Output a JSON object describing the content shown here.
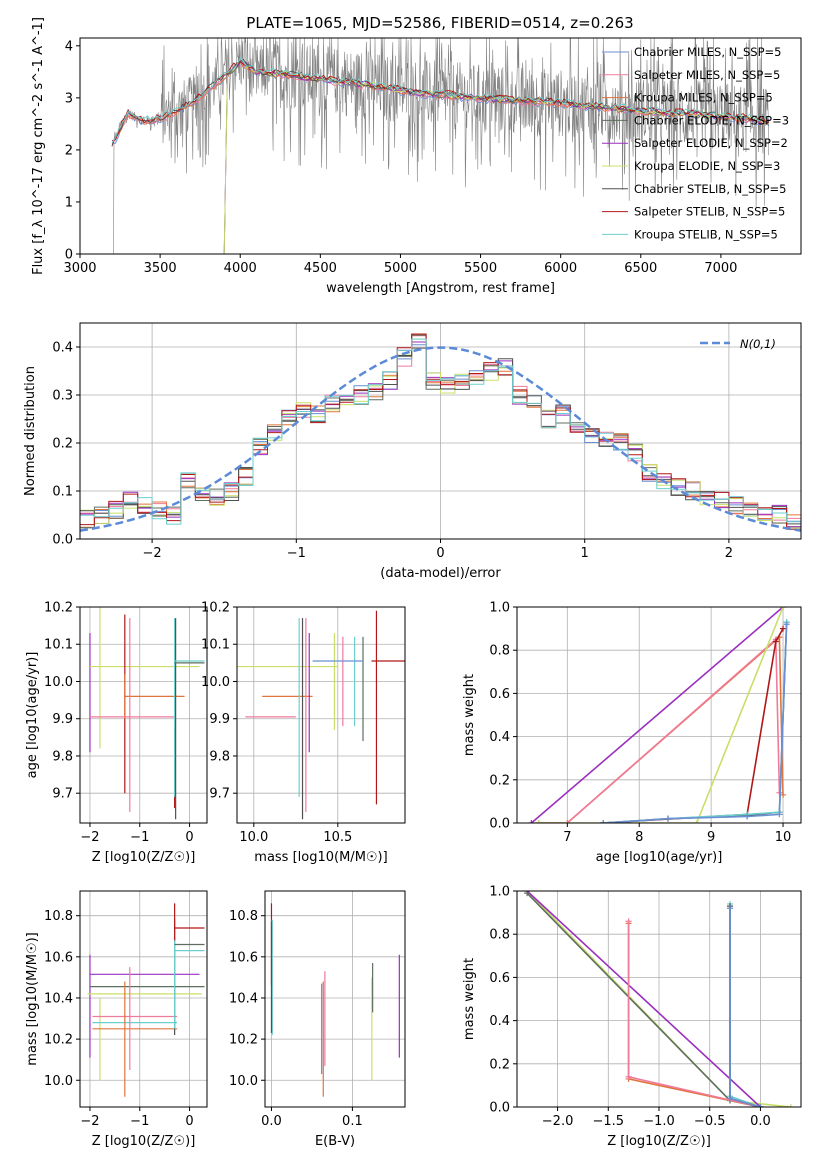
{
  "figure": {
    "title": "PLATE=1065, MJD=52586, FIBERID=0514, z=0.263"
  },
  "colors": {
    "chabrier_miles": "#6a8fd4",
    "salpeter_miles": "#f07a9a",
    "kroupa_miles": "#e0743c",
    "chabrier_elodie": "#5f6f5f",
    "salpeter_elodie": "#9b2fbf",
    "kroupa_elodie": "#c8e06a",
    "chabrier_stelib": "#505050",
    "salpeter_stelib": "#b01818",
    "kroupa_stelib": "#6ccfcf",
    "data_gray": "#808080",
    "normal_curve": "#5b8bd8"
  },
  "chart_data": [
    {
      "id": "spectrum",
      "type": "line",
      "xlabel": "wavelength [Angstrom, rest frame]",
      "ylabel": "Flux [f_λ 10^-17 erg cm^-2 s^-1 A^-1]",
      "xlim": [
        3000,
        7500
      ],
      "ylim": [
        0,
        4.15
      ],
      "xticks": [
        3000,
        3500,
        4000,
        4500,
        5000,
        5500,
        6000,
        6500,
        7000
      ],
      "yticks": [
        0,
        1,
        2,
        3,
        4
      ],
      "legend_position": "upper right",
      "data_range": [
        3200,
        7300
      ],
      "series": [
        {
          "name": "Chabrier MILES, N_SSP=5",
          "key": "chabrier_miles"
        },
        {
          "name": "Salpeter MILES, N_SSP=5",
          "key": "salpeter_miles"
        },
        {
          "name": "Kroupa MILES, N_SSP=5",
          "key": "kroupa_miles"
        },
        {
          "name": "Chabrier ELODIE, N_SSP=3",
          "key": "chabrier_elodie"
        },
        {
          "name": "Salpeter ELODIE, N_SSP=2",
          "key": "salpeter_elodie"
        },
        {
          "name": "Kroupa ELODIE, N_SSP=3",
          "key": "kroupa_elodie"
        },
        {
          "name": "Chabrier STELIB, N_SSP=5",
          "key": "chabrier_stelib"
        },
        {
          "name": "Salpeter STELIB, N_SSP=5",
          "key": "salpeter_stelib"
        },
        {
          "name": "Kroupa STELIB, N_SSP=5",
          "key": "kroupa_stelib"
        }
      ],
      "model_shape": {
        "x": [
          3200,
          3300,
          3400,
          3500,
          3700,
          3900,
          4000,
          4100,
          4300,
          4500,
          4800,
          5100,
          5500,
          6000,
          6500,
          7000,
          7300
        ],
        "y": [
          2.1,
          2.7,
          2.55,
          2.6,
          2.9,
          3.4,
          3.7,
          3.5,
          3.45,
          3.35,
          3.25,
          3.1,
          3.0,
          2.9,
          2.75,
          2.65,
          2.55
        ]
      }
    },
    {
      "id": "residuals",
      "type": "histogram",
      "xlabel": "(data-model)/error",
      "ylabel": "Normed distribution",
      "xlim": [
        -2.5,
        2.5
      ],
      "ylim": [
        0,
        0.45
      ],
      "xticks": [
        -2,
        -1,
        0,
        1,
        2
      ],
      "yticks": [
        0.0,
        0.1,
        0.2,
        0.3,
        0.4
      ],
      "legend": "N(0,1)",
      "bins": [
        -2.5,
        -2.4,
        -2.3,
        -2.2,
        -2.1,
        -2.0,
        -1.9,
        -1.8,
        -1.7,
        -1.6,
        -1.5,
        -1.4,
        -1.3,
        -1.2,
        -1.1,
        -1.0,
        -0.9,
        -0.8,
        -0.7,
        -0.6,
        -0.5,
        -0.4,
        -0.3,
        -0.2,
        -0.1,
        0.0,
        0.1,
        0.2,
        0.3,
        0.4,
        0.5,
        0.6,
        0.7,
        0.8,
        0.9,
        1.0,
        1.1,
        1.2,
        1.3,
        1.4,
        1.5,
        1.6,
        1.7,
        1.8,
        1.9,
        2.0,
        2.1,
        2.2,
        2.3,
        2.4,
        2.5
      ],
      "base_heights": [
        0.04,
        0.05,
        0.06,
        0.08,
        0.07,
        0.06,
        0.05,
        0.12,
        0.1,
        0.09,
        0.1,
        0.13,
        0.19,
        0.22,
        0.25,
        0.27,
        0.26,
        0.28,
        0.29,
        0.3,
        0.31,
        0.33,
        0.38,
        0.41,
        0.33,
        0.32,
        0.33,
        0.34,
        0.35,
        0.36,
        0.3,
        0.28,
        0.25,
        0.26,
        0.23,
        0.22,
        0.21,
        0.2,
        0.18,
        0.14,
        0.12,
        0.11,
        0.1,
        0.09,
        0.08,
        0.07,
        0.06,
        0.05,
        0.05,
        0.04
      ]
    },
    {
      "id": "age_vs_Z",
      "type": "scatter",
      "xlabel": "Z [log10(Z/Z☉)]",
      "ylabel": "age  [log10(age/yr)]",
      "xlim": [
        -2.2,
        0.35
      ],
      "ylim": [
        9.62,
        10.2
      ],
      "xticks": [
        -2,
        -1,
        0
      ],
      "yticks": [
        9.7,
        9.8,
        9.9,
        10.0,
        10.1,
        10.2
      ],
      "points": [
        {
          "key": "salpeter_elodie",
          "x": -2.0,
          "y": 9.97,
          "xe": 0.0,
          "ye": 0.16
        },
        {
          "key": "kroupa_elodie",
          "x": -1.8,
          "y": 10.04,
          "xe": 0.0,
          "ye": 0.22
        },
        {
          "key": "kroupa_elodie",
          "x": -0.9,
          "y": 10.04,
          "xe": 1.1,
          "ye": 0.0
        },
        {
          "key": "salpeter_stelib",
          "x": -1.3,
          "y": 9.94,
          "xe": 0.0,
          "ye": 0.24
        },
        {
          "key": "kroupa_miles",
          "x": -0.7,
          "y": 9.96,
          "xe": 0.6,
          "ye": 0.0
        },
        {
          "key": "kroupa_miles",
          "x": -1.3,
          "y": 9.96,
          "xe": 0.0,
          "ye": 0.06
        },
        {
          "key": "salpeter_miles",
          "x": -1.2,
          "y": 9.91,
          "xe": 0.0,
          "ye": 0.26
        },
        {
          "key": "salpeter_miles",
          "x": -1.15,
          "y": 9.905,
          "xe": 0.85,
          "ye": 0.0
        },
        {
          "key": "salpeter_stelib",
          "x": -0.3,
          "y": 9.77,
          "xe": 0.0,
          "ye": 0.11
        },
        {
          "key": "kroupa_stelib",
          "x": -0.3,
          "y": 9.93,
          "xe": 0.0,
          "ye": 0.24
        },
        {
          "key": "chabrier_stelib",
          "x": -0.28,
          "y": 9.9,
          "xe": 0.0,
          "ye": 0.27
        },
        {
          "key": "chabrier_elodie",
          "x": 0.0,
          "y": 10.05,
          "xe": 0.3,
          "ye": 0.0
        },
        {
          "key": "kroupa_stelib",
          "x": 0.0,
          "y": 10.055,
          "xe": 0.3,
          "ye": 0.0
        }
      ]
    },
    {
      "id": "age_vs_mass",
      "type": "scatter",
      "xlabel": "mass [log10(M/M☉)]",
      "ylabel": "",
      "xlim": [
        9.9,
        10.9
      ],
      "ylim": [
        9.62,
        10.2
      ],
      "xticks": [
        10.0,
        10.5
      ],
      "yticks": [
        9.7,
        9.8,
        9.9,
        10.0,
        10.1,
        10.2
      ],
      "points": [
        {
          "key": "kroupa_elodie",
          "x": 10.2,
          "y": 10.04,
          "xe": 0.3,
          "ye": 0.0
        },
        {
          "key": "kroupa_miles",
          "x": 10.2,
          "y": 9.96,
          "xe": 0.15,
          "ye": 0.0
        },
        {
          "key": "salpeter_miles",
          "x": 10.1,
          "y": 9.905,
          "xe": 0.15,
          "ye": 0.0
        },
        {
          "key": "kroupa_stelib",
          "x": 10.27,
          "y": 9.93,
          "xe": 0.0,
          "ye": 0.24
        },
        {
          "key": "chabrier_stelib",
          "x": 10.29,
          "y": 9.9,
          "xe": 0.0,
          "ye": 0.27
        },
        {
          "key": "salpeter_miles",
          "x": 10.31,
          "y": 9.91,
          "xe": 0.0,
          "ye": 0.26
        },
        {
          "key": "salpeter_elodie",
          "x": 10.33,
          "y": 9.97,
          "xe": 0.0,
          "ye": 0.16
        },
        {
          "key": "kroupa_elodie",
          "x": 10.48,
          "y": 10.0,
          "xe": 0.0,
          "ye": 0.13
        },
        {
          "key": "salpeter_miles",
          "x": 10.53,
          "y": 10.0,
          "xe": 0.0,
          "ye": 0.12
        },
        {
          "key": "kroupa_stelib",
          "x": 10.6,
          "y": 10.0,
          "xe": 0.0,
          "ye": 0.12
        },
        {
          "key": "chabrier_elodie",
          "x": 10.65,
          "y": 9.98,
          "xe": 0.0,
          "ye": 0.14
        },
        {
          "key": "salpeter_stelib",
          "x": 10.73,
          "y": 9.93,
          "xe": 0.0,
          "ye": 0.26
        },
        {
          "key": "chabrier_miles",
          "x": 10.5,
          "y": 10.055,
          "xe": 0.15,
          "ye": 0.0
        },
        {
          "key": "salpeter_stelib",
          "x": 10.8,
          "y": 10.055,
          "xe": 0.1,
          "ye": 0.0
        }
      ]
    },
    {
      "id": "massweight_vs_age",
      "type": "line",
      "xlabel": "age  [log10(age/yr)]",
      "ylabel": "mass weight",
      "xlim": [
        6.3,
        10.25
      ],
      "ylim": [
        0,
        1.0
      ],
      "xticks": [
        7,
        8,
        9,
        10
      ],
      "yticks": [
        0.0,
        0.2,
        0.4,
        0.6,
        0.8,
        1.0
      ],
      "series": [
        {
          "key": "salpeter_elodie",
          "x": [
            6.5,
            10.0
          ],
          "y": [
            0.0,
            1.0
          ]
        },
        {
          "key": "kroupa_miles",
          "x": [
            6.6,
            7.0,
            9.95,
            10.0
          ],
          "y": [
            0.0,
            0.0,
            0.86,
            0.13
          ]
        },
        {
          "key": "salpeter_miles",
          "x": [
            6.6,
            7.0,
            9.9,
            9.95
          ],
          "y": [
            0.0,
            0.0,
            0.85,
            0.14
          ]
        },
        {
          "key": "kroupa_elodie",
          "x": [
            6.6,
            8.8,
            10.0
          ],
          "y": [
            0.0,
            0.0,
            1.0
          ]
        },
        {
          "key": "salpeter_stelib",
          "x": [
            7.5,
            9.5,
            9.9,
            10.0
          ],
          "y": [
            0.0,
            0.04,
            0.84,
            0.9
          ]
        },
        {
          "key": "chabrier_stelib",
          "x": [
            7.5,
            8.4,
            9.5,
            9.95,
            10.05
          ],
          "y": [
            0.0,
            0.02,
            0.035,
            0.05,
            0.93
          ]
        },
        {
          "key": "kroupa_stelib",
          "x": [
            7.5,
            8.4,
            9.5,
            9.95,
            10.05
          ],
          "y": [
            0.0,
            0.02,
            0.04,
            0.05,
            0.93
          ]
        },
        {
          "key": "chabrier_miles",
          "x": [
            7.5,
            8.4,
            9.5,
            9.95,
            10.05
          ],
          "y": [
            0.0,
            0.02,
            0.03,
            0.04,
            0.92
          ]
        }
      ]
    },
    {
      "id": "mass_vs_Z",
      "type": "scatter",
      "xlabel": "Z [log10(Z/Z☉)]",
      "ylabel": "mass [log10(M/M☉)]",
      "xlim": [
        -2.2,
        0.35
      ],
      "ylim": [
        9.87,
        10.92
      ],
      "xticks": [
        -2,
        -1,
        0
      ],
      "yticks": [
        10.0,
        10.2,
        10.4,
        10.6,
        10.8
      ],
      "points": [
        {
          "key": "salpeter_elodie",
          "x": -2.0,
          "y": 10.36,
          "xe": 0.0,
          "ye": 0.25
        },
        {
          "key": "salpeter_elodie",
          "x": -0.9,
          "y": 10.515,
          "xe": 1.1,
          "ye": 0.0
        },
        {
          "key": "kroupa_elodie",
          "x": -1.8,
          "y": 10.2,
          "xe": 0.0,
          "ye": 0.2
        },
        {
          "key": "chabrier_elodie",
          "x": -0.85,
          "y": 10.455,
          "xe": 1.15,
          "ye": 0.0
        },
        {
          "key": "kroupa_elodie",
          "x": -0.9,
          "y": 10.42,
          "xe": 1.15,
          "ye": 0.0
        },
        {
          "key": "salpeter_miles",
          "x": -1.1,
          "y": 10.31,
          "xe": 0.85,
          "ye": 0.0
        },
        {
          "key": "kroupa_stelib",
          "x": -1.1,
          "y": 10.28,
          "xe": 0.85,
          "ye": 0.0
        },
        {
          "key": "kroupa_miles",
          "x": -1.1,
          "y": 10.25,
          "xe": 0.85,
          "ye": 0.0
        },
        {
          "key": "kroupa_miles",
          "x": -1.3,
          "y": 10.2,
          "xe": 0.0,
          "ye": 0.28
        },
        {
          "key": "salpeter_miles",
          "x": -1.2,
          "y": 10.3,
          "xe": 0.0,
          "ye": 0.25
        },
        {
          "key": "chabrier_stelib",
          "x": -0.3,
          "y": 10.5,
          "xe": 0.0,
          "ye": 0.28
        },
        {
          "key": "kroupa_stelib",
          "x": -0.3,
          "y": 10.52,
          "xe": 0.0,
          "ye": 0.27
        },
        {
          "key": "salpeter_stelib",
          "x": 0.0,
          "y": 10.74,
          "xe": 0.3,
          "ye": 0.0
        },
        {
          "key": "chabrier_elodie",
          "x": 0.0,
          "y": 10.66,
          "xe": 0.3,
          "ye": 0.0
        },
        {
          "key": "kroupa_stelib",
          "x": 0.0,
          "y": 10.63,
          "xe": 0.3,
          "ye": 0.0
        },
        {
          "key": "salpeter_stelib",
          "x": -0.3,
          "y": 10.77,
          "xe": 0.0,
          "ye": 0.09
        }
      ]
    },
    {
      "id": "mass_vs_ebv",
      "type": "scatter",
      "xlabel": "E(B-V)",
      "ylabel": "",
      "xlim": [
        -0.008,
        0.165
      ],
      "ylim": [
        9.87,
        10.92
      ],
      "xticks": [
        0.0,
        0.1
      ],
      "yticks": [
        10.0,
        10.2,
        10.4,
        10.6,
        10.8
      ],
      "points": [
        {
          "key": "salpeter_stelib",
          "x": 0.0,
          "y": 10.66,
          "xe": 0.0,
          "ye": 0.2
        },
        {
          "key": "kroupa_stelib",
          "x": 0.001,
          "y": 10.5,
          "xe": 0.0,
          "ye": 0.28
        },
        {
          "key": "chabrier_stelib",
          "x": 0.0,
          "y": 10.5,
          "xe": 0.0,
          "ye": 0.27
        },
        {
          "key": "kroupa_miles",
          "x": 0.064,
          "y": 10.2,
          "xe": 0.0,
          "ye": 0.28
        },
        {
          "key": "salpeter_miles",
          "x": 0.066,
          "y": 10.3,
          "xe": 0.0,
          "ye": 0.23
        },
        {
          "key": "chabrier_miles",
          "x": 0.062,
          "y": 10.25,
          "xe": 0.0,
          "ye": 0.22
        },
        {
          "key": "kroupa_elodie",
          "x": 0.124,
          "y": 10.25,
          "xe": 0.0,
          "ye": 0.25
        },
        {
          "key": "chabrier_elodie",
          "x": 0.125,
          "y": 10.45,
          "xe": 0.0,
          "ye": 0.12
        },
        {
          "key": "salpeter_elodie",
          "x": 0.158,
          "y": 10.36,
          "xe": 0.0,
          "ye": 0.25
        }
      ]
    },
    {
      "id": "massweight_vs_Z",
      "type": "line",
      "xlabel": "Z [log10(Z/Z☉)]",
      "ylabel": "mass weight",
      "xlim": [
        -2.4,
        0.4
      ],
      "ylim": [
        0,
        1.0
      ],
      "xticks": [
        -2.0,
        -1.5,
        -1.0,
        -0.5,
        0.0
      ],
      "yticks": [
        0.0,
        0.2,
        0.4,
        0.6,
        0.8,
        1.0
      ],
      "series": [
        {
          "key": "kroupa_elodie",
          "x": [
            -2.3,
            -0.3,
            0.3
          ],
          "y": [
            1.0,
            0.03,
            0.0
          ]
        },
        {
          "key": "salpeter_elodie",
          "x": [
            -2.3,
            0.0
          ],
          "y": [
            1.0,
            0.0
          ]
        },
        {
          "key": "chabrier_elodie",
          "x": [
            -2.3,
            -0.3,
            0.0
          ],
          "y": [
            0.99,
            0.03,
            0.0
          ]
        },
        {
          "key": "kroupa_miles",
          "x": [
            -1.3,
            -1.3,
            0.0
          ],
          "y": [
            0.85,
            0.13,
            0.0
          ]
        },
        {
          "key": "salpeter_miles",
          "x": [
            -1.3,
            -1.3,
            0.0
          ],
          "y": [
            0.86,
            0.14,
            0.0
          ]
        },
        {
          "key": "kroupa_stelib",
          "x": [
            -0.3,
            -0.3,
            0.0
          ],
          "y": [
            0.94,
            0.05,
            0.0
          ]
        },
        {
          "key": "chabrier_stelib",
          "x": [
            -0.3,
            -0.3,
            0.0
          ],
          "y": [
            0.93,
            0.04,
            0.0
          ]
        },
        {
          "key": "chabrier_miles",
          "x": [
            -0.3,
            -0.3,
            0.0
          ],
          "y": [
            0.92,
            0.04,
            0.0
          ]
        }
      ]
    }
  ]
}
